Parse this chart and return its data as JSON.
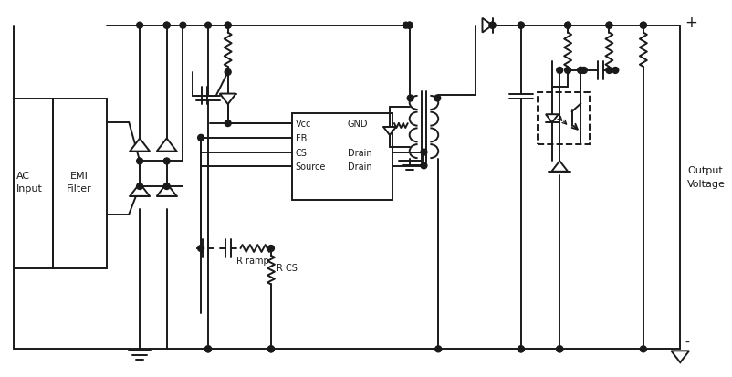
{
  "bg_color": "#ffffff",
  "line_color": "#1a1a1a",
  "lw": 1.4,
  "dot_r": 3.5,
  "fig_w": 8.03,
  "fig_h": 4.14,
  "labels": {
    "ac_input": "AC\nInput",
    "emi_filter": "EMI\nFilter",
    "output_voltage": "Output\nVoltage",
    "vcc": "Vcc",
    "fb": "FB",
    "cs": "CS",
    "source": "Source",
    "gnd": "GND",
    "drain1": "Drain",
    "drain2": "Drain",
    "r_ramp": "R ramp",
    "r_cs": "R CS",
    "plus": "+",
    "minus": "-"
  }
}
